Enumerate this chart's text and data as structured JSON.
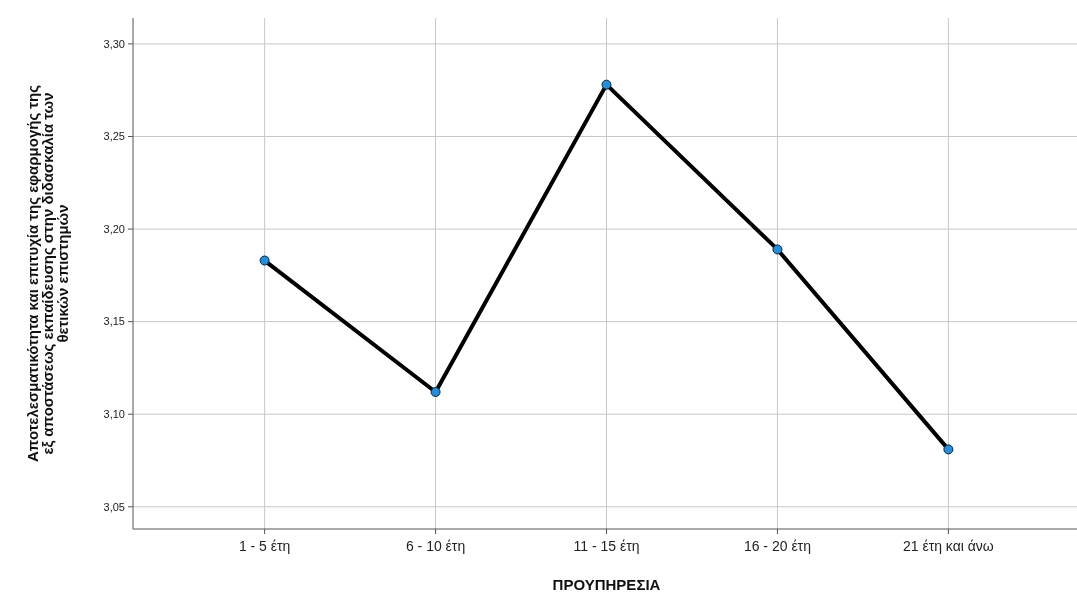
{
  "chart_data": {
    "type": "line",
    "xlabel": "ΠΡΟΥΠΗΡΕΣΙΑ",
    "ylabel": "Αποτελεσματικότητα και επιτυχία της εφαρμογής της εξ αποστάσεως εκπαίδευσης στην διδασκαλία των θετικών επιστημών",
    "categories": [
      "1 - 5 έτη",
      "6 - 10 έτη",
      "11 - 15 έτη",
      "16 - 20 έτη",
      "21 έτη και άνω"
    ],
    "series": [
      {
        "color": "#000000",
        "values": [
          3.183,
          3.112,
          3.278,
          3.189,
          3.081
        ]
      }
    ],
    "ylim": [
      3.038,
      3.314
    ],
    "yticks": [
      {
        "value": 3.05,
        "label": "3,05"
      },
      {
        "value": 3.1,
        "label": "3,10"
      },
      {
        "value": 3.15,
        "label": "3,15"
      },
      {
        "value": 3.2,
        "label": "3,20"
      },
      {
        "value": 3.25,
        "label": "3,25"
      },
      {
        "value": 3.3,
        "label": "3,30"
      }
    ],
    "grid": true,
    "marker": "circle",
    "line_style": "solid"
  }
}
